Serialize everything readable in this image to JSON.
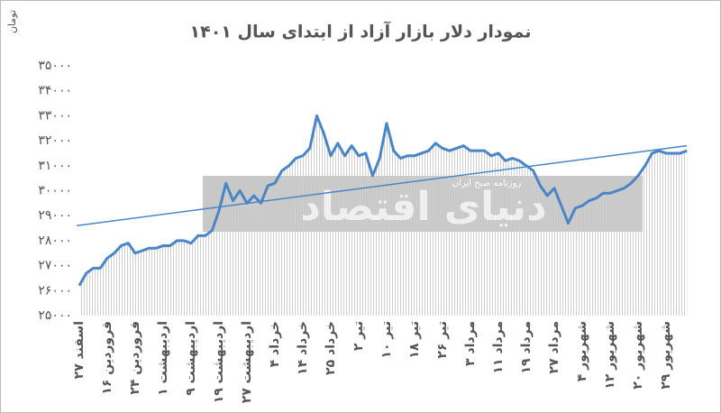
{
  "chart_data": {
    "type": "line",
    "title": "نمودار دلار بازار آزاد از ابتدای سال ۱۴۰۱",
    "y_label": "تومان",
    "watermark": {
      "title": "دنیای اقتصاد",
      "subtitle": "روزنامه صبح ایران"
    },
    "categories": [
      "۲۷ اسفند",
      null,
      null,
      null,
      "۱۶ فروردین",
      null,
      null,
      null,
      "۲۴ فروردین",
      null,
      null,
      null,
      "۱ اردیبهشت",
      null,
      null,
      null,
      "۹ اردیبهشت",
      null,
      null,
      null,
      "۱۹ اردیبهشت",
      null,
      null,
      null,
      "۲۷ اردیبهشت",
      null,
      null,
      null,
      "۴ خرداد",
      null,
      null,
      null,
      "۱۴ خرداد",
      null,
      null,
      null,
      "۲۵ خرداد",
      null,
      null,
      null,
      "۲ تیر",
      null,
      null,
      null,
      "۱۰ تیر",
      null,
      null,
      null,
      "۱۸ تیر",
      null,
      null,
      null,
      "۲۶ تیر",
      null,
      null,
      null,
      "۳ مرداد",
      null,
      null,
      null,
      "۱۱ مرداد",
      null,
      null,
      null,
      "۱۹ مرداد",
      null,
      null,
      null,
      "۲۷ مرداد",
      null,
      null,
      null,
      "۴ شهریور",
      null,
      null,
      null,
      "۱۲ شهریور",
      null,
      null,
      null,
      "۲۰ شهریور",
      null,
      null,
      null,
      "۲۹ شهریور",
      null,
      null,
      null
    ],
    "series": [
      {
        "color": "#4a86c5",
        "values": [
          26200,
          26700,
          26900,
          26900,
          27300,
          27500,
          27800,
          27900,
          27500,
          27600,
          27700,
          27700,
          27800,
          27800,
          28000,
          28000,
          27900,
          28200,
          28200,
          28400,
          29200,
          30300,
          29600,
          30000,
          29500,
          29800,
          29500,
          30200,
          30300,
          30800,
          31000,
          31300,
          31400,
          31700,
          33000,
          32300,
          31400,
          31900,
          31400,
          31800,
          31400,
          31500,
          30600,
          31300,
          32700,
          31600,
          31300,
          31400,
          31400,
          31500,
          31600,
          31900,
          31700,
          31600,
          31700,
          31800,
          31600,
          31600,
          31600,
          31400,
          31500,
          31200,
          31300,
          31200,
          31000,
          30800,
          30200,
          29800,
          30100,
          29400,
          28700,
          29300,
          29400,
          29600,
          29700,
          29900,
          29900,
          30000,
          30100,
          30300,
          30600,
          31000,
          31500,
          31600,
          31500,
          31500,
          31500,
          31600
        ]
      }
    ],
    "trend": {
      "color": "#4a86c5",
      "values": [
        28600,
        31800
      ]
    },
    "area_color": "#c8c8c8",
    "ylim": [
      25000,
      35000
    ],
    "yticks": [
      {
        "value": 25000,
        "label": "۲۵۰۰۰"
      },
      {
        "value": 26000,
        "label": "۲۶۰۰۰"
      },
      {
        "value": 27000,
        "label": "۲۷۰۰۰"
      },
      {
        "value": 28000,
        "label": "۲۸۰۰۰"
      },
      {
        "value": 29000,
        "label": "۲۹۰۰۰"
      },
      {
        "value": 30000,
        "label": "۳۰۰۰۰"
      },
      {
        "value": 31000,
        "label": "۳۱۰۰۰"
      },
      {
        "value": 32000,
        "label": "۳۲۰۰۰"
      },
      {
        "value": 33000,
        "label": "۳۳۰۰۰"
      },
      {
        "value": 34000,
        "label": "۳۴۰۰۰"
      },
      {
        "value": 35000,
        "label": "۳۵۰۰۰"
      }
    ]
  }
}
